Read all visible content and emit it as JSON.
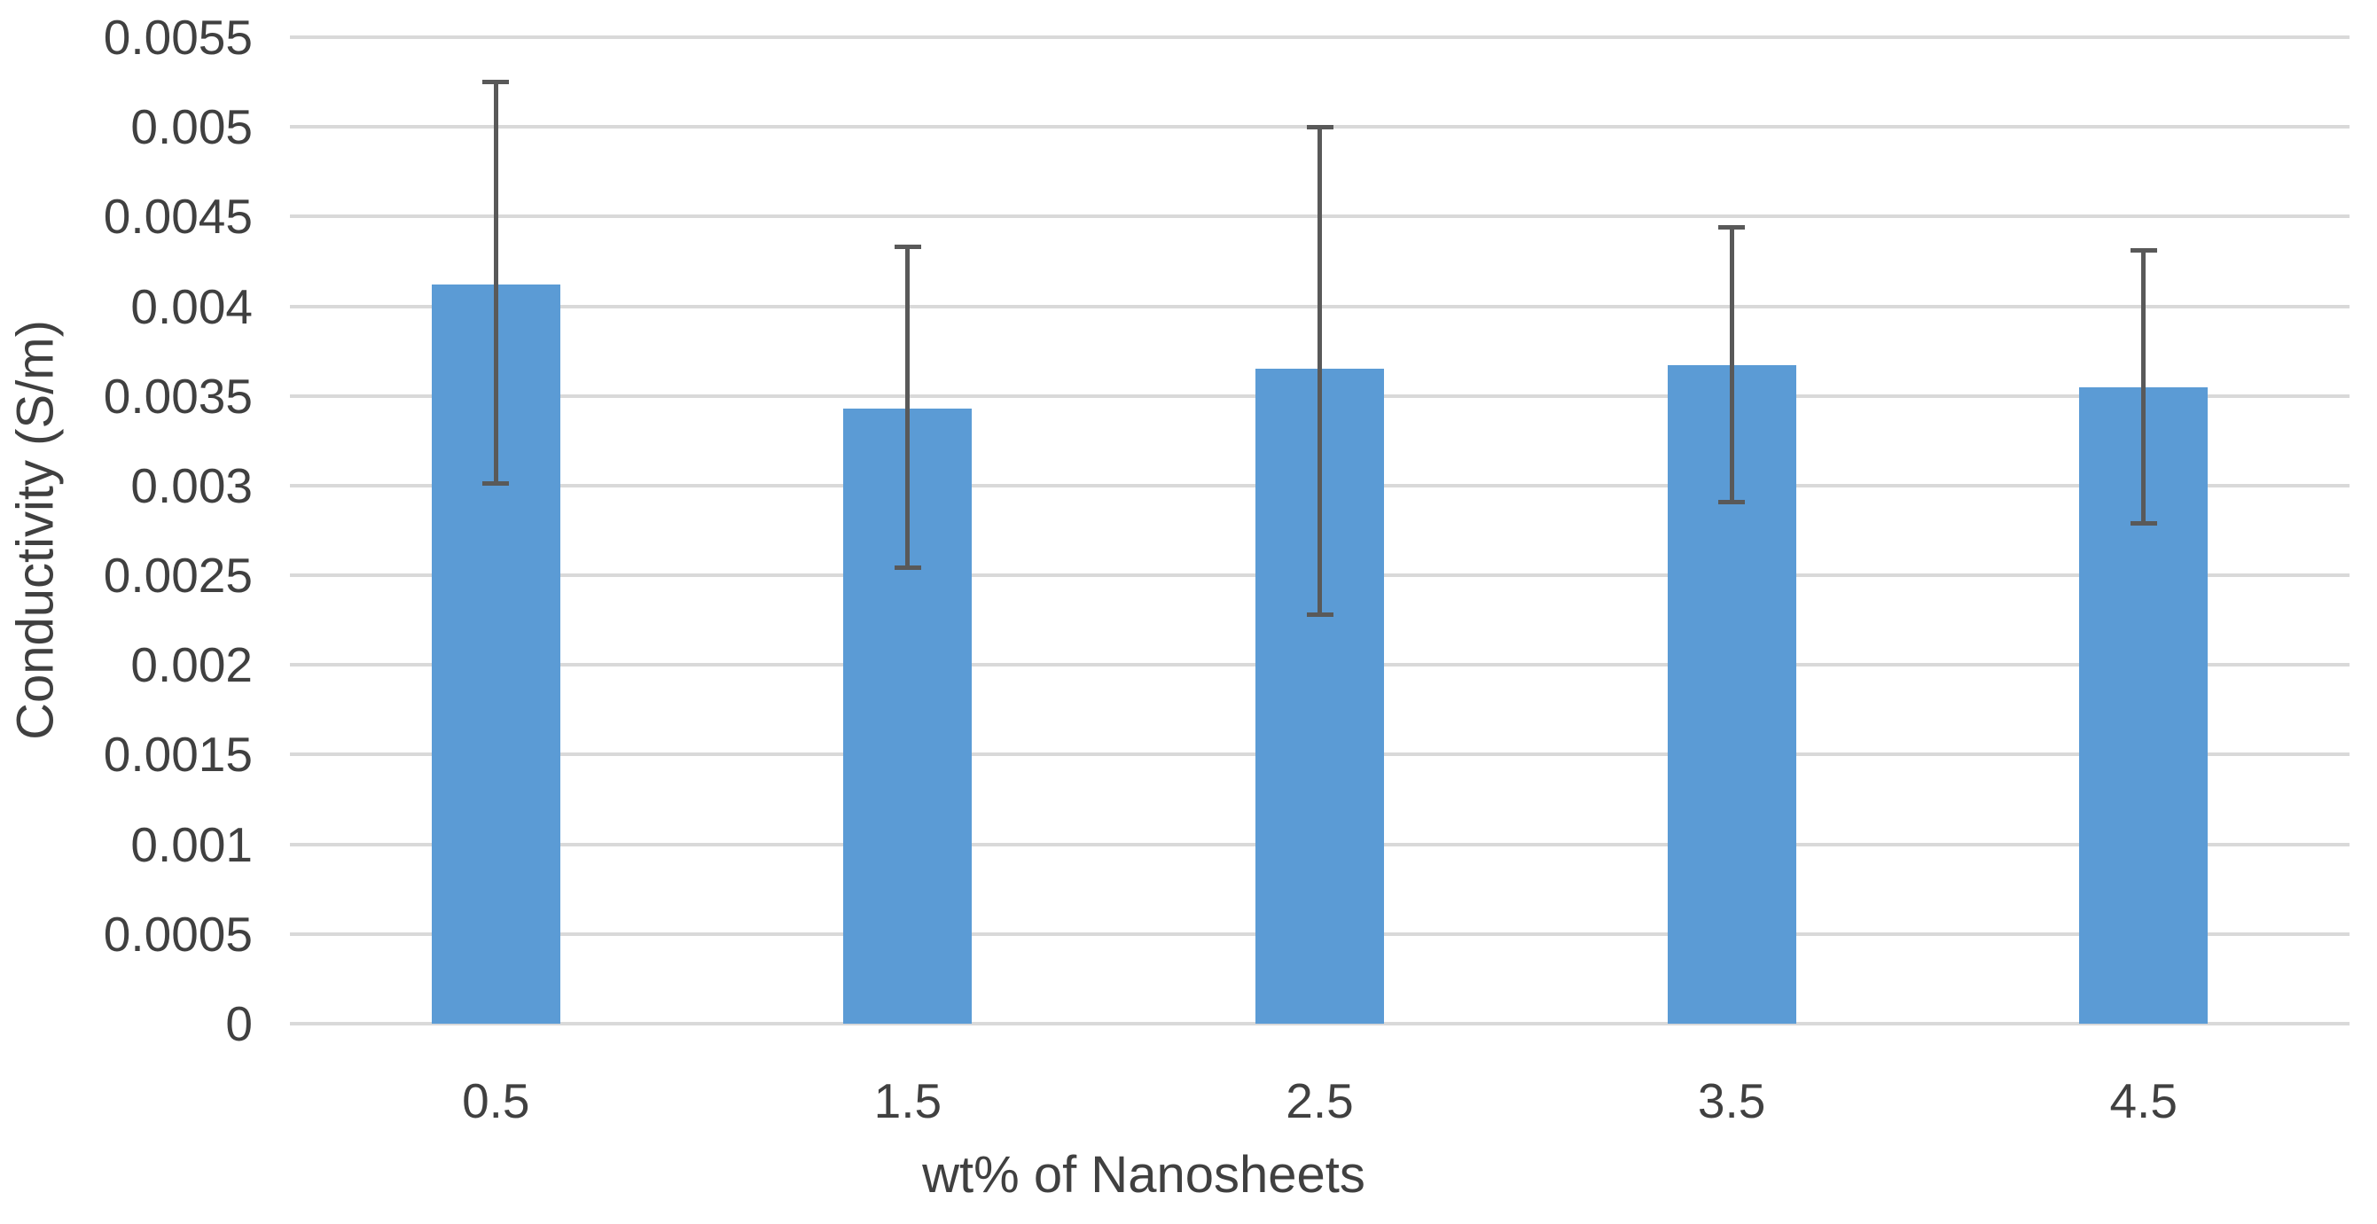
{
  "chart_data": {
    "type": "bar",
    "title": "",
    "xlabel": "wt% of Nanosheets",
    "ylabel": "Conductivity (S/m)",
    "categories": [
      "0.5",
      "1.5",
      "2.5",
      "3.5",
      "4.5"
    ],
    "values": [
      0.00412,
      0.00343,
      0.00365,
      0.00367,
      0.00355
    ],
    "error_plus": [
      0.00113,
      0.0009,
      0.00135,
      0.00077,
      0.00076
    ],
    "error_minus": [
      0.00111,
      0.00089,
      0.00137,
      0.00076,
      0.00076
    ],
    "ylim": [
      0,
      0.0055
    ],
    "ytick_step": 0.0005,
    "ytick_labels": [
      "0",
      "0.0005",
      "0.001",
      "0.0015",
      "0.002",
      "0.0025",
      "0.003",
      "0.0035",
      "0.004",
      "0.0045",
      "0.005",
      "0.0055"
    ],
    "grid": true,
    "legend_position": "none",
    "colors": {
      "bar": "#5B9BD5",
      "error_bar": "#595959",
      "gridline": "#D9D9D9",
      "text": "#404040",
      "background": "#FFFFFF"
    }
  }
}
